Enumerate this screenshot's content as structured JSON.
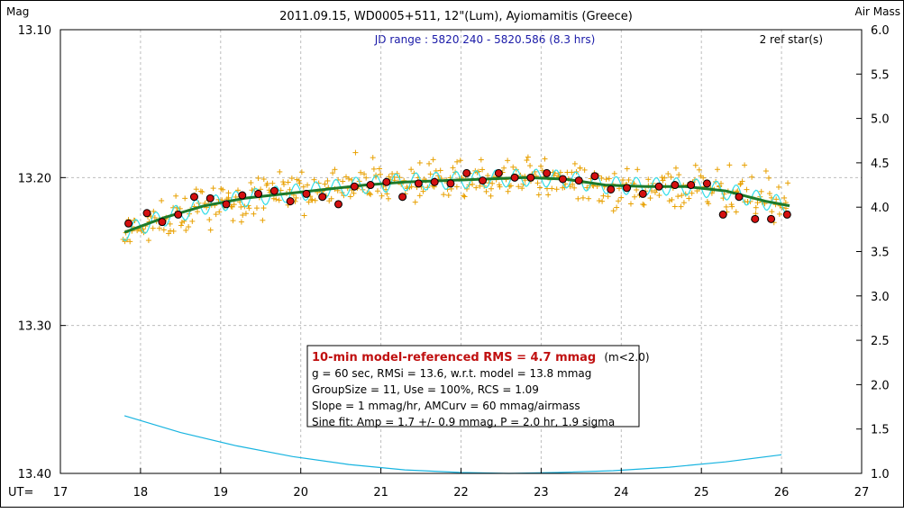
{
  "chart_data": {
    "type": "scatter",
    "title": "2011.09.15, WD0005+511, 12\"(Lum), Ayiomamitis (Greece)",
    "left_axis_label": "Mag",
    "right_axis_label": "Air Mass",
    "x_axis_prefix": "UT=",
    "jd_range": "JD range : 5820.240 - 5820.586 (8.3 hrs)",
    "ref_stars": "2 ref star(s)",
    "xlim": [
      17,
      27
    ],
    "ylim_mag": [
      13.4,
      13.1
    ],
    "ylim_airmass": [
      1.0,
      6.0
    ],
    "x_ticks": [
      "17",
      "18",
      "19",
      "20",
      "21",
      "22",
      "23",
      "24",
      "25",
      "26",
      "27"
    ],
    "y_ticks_mag": [
      "13.10",
      "13.20",
      "13.30",
      "13.40"
    ],
    "y_ticks_airmass": [
      "6.0",
      "5.5",
      "5.0",
      "4.5",
      "4.0",
      "3.5",
      "3.0",
      "2.5",
      "2.0",
      "1.5",
      "1.0"
    ],
    "grid": true,
    "colors": {
      "raw_points": "#e8a000",
      "binned_points": "#d41010",
      "model_curve": "#1d7a2a",
      "sine_fit": "#33dde8",
      "airmass": "#18b4e0",
      "jd_text": "#1a1aa8",
      "rms_text": "#c01010"
    },
    "binned_series": {
      "name": "10-min averages",
      "x": [
        17.85,
        18.08,
        18.27,
        18.47,
        18.67,
        18.87,
        19.07,
        19.27,
        19.47,
        19.67,
        19.87,
        20.07,
        20.27,
        20.47,
        20.67,
        20.87,
        21.07,
        21.27,
        21.47,
        21.67,
        21.87,
        22.07,
        22.27,
        22.47,
        22.67,
        22.87,
        23.07,
        23.27,
        23.47,
        23.67,
        23.87,
        24.07,
        24.27,
        24.47,
        24.67,
        24.87,
        25.07,
        25.27,
        25.47,
        25.67,
        25.87,
        26.07
      ],
      "y": [
        13.231,
        13.224,
        13.23,
        13.225,
        13.213,
        13.214,
        13.218,
        13.212,
        13.211,
        13.209,
        13.216,
        13.211,
        13.213,
        13.218,
        13.206,
        13.205,
        13.203,
        13.213,
        13.204,
        13.203,
        13.204,
        13.197,
        13.202,
        13.197,
        13.2,
        13.2,
        13.197,
        13.201,
        13.202,
        13.199,
        13.208,
        13.207,
        13.211,
        13.206,
        13.205,
        13.205,
        13.204,
        13.225,
        13.213,
        13.228,
        13.228,
        13.225
      ]
    },
    "model_curve": {
      "x": [
        17.8,
        18.3,
        18.8,
        19.3,
        19.8,
        20.3,
        20.8,
        21.3,
        21.8,
        22.3,
        22.8,
        23.3,
        23.8,
        24.3,
        24.8,
        25.3,
        25.8,
        26.1
      ],
      "y": [
        13.237,
        13.227,
        13.219,
        13.214,
        13.211,
        13.208,
        13.205,
        13.203,
        13.202,
        13.201,
        13.2,
        13.201,
        13.205,
        13.206,
        13.206,
        13.209,
        13.216,
        13.219
      ]
    },
    "airmass_curve": {
      "x": [
        17.8,
        18.5,
        19.2,
        19.9,
        20.6,
        21.3,
        22.0,
        22.6,
        23.2,
        23.9,
        24.6,
        25.3,
        26.0
      ],
      "y": [
        1.65,
        1.46,
        1.31,
        1.19,
        1.1,
        1.04,
        1.01,
        1.0,
        1.01,
        1.03,
        1.07,
        1.13,
        1.21
      ]
    },
    "sine_fit": {
      "amplitude_mmag": 1.7,
      "period_hr": 2.0
    },
    "info_box": {
      "rms_line": "10-min model-referenced RMS = 4.7 mmag",
      "rms_suffix": "(m<2.0)",
      "line2": "g = 60 sec, RMSi = 13.6, w.r.t. model = 13.8 mmag",
      "line3": "GroupSize = 11, Use = 100%, RCS = 1.09",
      "line4": "Slope = 1 mmag/hr, AMCurv = 60 mmag/airmass",
      "line5": "Sine fit: Amp = 1.7 +/- 0.9 mmag, P = 2.0 hr, 1.9 sigma"
    }
  }
}
